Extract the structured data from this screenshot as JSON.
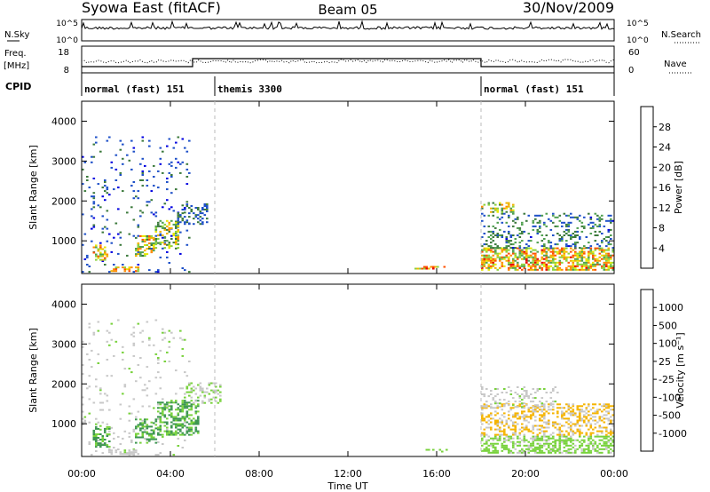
{
  "header": {
    "station": "Syowa East (fitACF)",
    "beam": "Beam 05",
    "date": "30/Nov/2009"
  },
  "summary_panels": {
    "nsky": {
      "label": "N.Sky",
      "tick_top": "10^5",
      "tick_bottom": "10^0"
    },
    "nsearch": {
      "label": "N.Search",
      "tick_top": "10^5",
      "tick_bottom": "10^0"
    },
    "freq": {
      "label_line1": "Freq.",
      "label_line2": "[MHz]",
      "tick_top": "18",
      "tick_bottom": "8"
    },
    "nave": {
      "label": "Nave",
      "tick_top": "60",
      "tick_bottom": "0"
    },
    "cpid": {
      "label": "CPID",
      "segments": [
        {
          "name": "normal (fast) 151",
          "start_hour": 0,
          "end_hour": 6
        },
        {
          "name": "themis 3300",
          "start_hour": 6,
          "end_hour": 18
        },
        {
          "name": "normal (fast) 151",
          "start_hour": 18,
          "end_hour": 24
        }
      ]
    }
  },
  "xaxis": {
    "label": "Time UT",
    "ticks": [
      "00:00",
      "04:00",
      "08:00",
      "12:00",
      "16:00",
      "20:00",
      "00:00"
    ]
  },
  "colors": {
    "power_scale": [
      "#0000e0",
      "#1e50c8",
      "#3c7a3c",
      "#50a050",
      "#8cd23c",
      "#e6e600",
      "#f0b400",
      "#ff8c00",
      "#ff5000",
      "#e60000"
    ],
    "velocity_scale": [
      "#e60000",
      "#ff7800",
      "#f5b400",
      "#c8c8c8",
      "#78d23c",
      "#3c9650",
      "#2850c8",
      "#0a28c8"
    ]
  },
  "chart_data": [
    {
      "type": "heatmap",
      "name": "power",
      "ylabel": "Slant Range [km]",
      "xlim": [
        0,
        24
      ],
      "ylim": [
        180,
        4500
      ],
      "yticks": [
        "1000",
        "2000",
        "3000",
        "4000"
      ],
      "colorbar": {
        "label": "Power [dB]",
        "range": [
          0,
          32
        ],
        "ticks": [
          "4",
          "8",
          "12",
          "16",
          "20",
          "24",
          "28"
        ]
      },
      "regions": [
        {
          "t": [
            0.0,
            4.8
          ],
          "r": [
            200,
            3600
          ],
          "level": [
            2,
            8
          ],
          "density": 0.06
        },
        {
          "t": [
            0.5,
            1.2
          ],
          "r": [
            500,
            900
          ],
          "level": [
            10,
            28
          ],
          "density": 0.5
        },
        {
          "t": [
            1.3,
            2.6
          ],
          "r": [
            220,
            330
          ],
          "level": [
            14,
            28
          ],
          "density": 0.6
        },
        {
          "t": [
            2.4,
            3.3
          ],
          "r": [
            600,
            1100
          ],
          "level": [
            6,
            26
          ],
          "density": 0.5
        },
        {
          "t": [
            3.3,
            4.3
          ],
          "r": [
            800,
            1500
          ],
          "level": [
            6,
            24
          ],
          "density": 0.45
        },
        {
          "t": [
            4.3,
            5.6
          ],
          "r": [
            1400,
            1900
          ],
          "level": [
            3,
            9
          ],
          "density": 0.3
        },
        {
          "t": [
            15.0,
            16.5
          ],
          "r": [
            280,
            360
          ],
          "level": [
            14,
            30
          ],
          "density": 0.5
        },
        {
          "t": [
            18.0,
            24.0
          ],
          "r": [
            250,
            800
          ],
          "level": [
            10,
            30
          ],
          "density": 0.6
        },
        {
          "t": [
            18.0,
            24.0
          ],
          "r": [
            800,
            1700
          ],
          "level": [
            3,
            12
          ],
          "density": 0.25
        },
        {
          "t": [
            18.0,
            19.5
          ],
          "r": [
            1700,
            1950
          ],
          "level": [
            8,
            24
          ],
          "density": 0.35
        }
      ]
    },
    {
      "type": "heatmap",
      "name": "velocity",
      "ylabel": "Slant Range [km]",
      "xlim": [
        0,
        24
      ],
      "ylim": [
        180,
        4500
      ],
      "yticks": [
        "1000",
        "2000",
        "3000",
        "4000"
      ],
      "colorbar": {
        "label": "Velocity [m s⁻¹]",
        "range": [
          -1000,
          1000
        ],
        "ticks": [
          "1000",
          "500",
          "100",
          "25",
          "-25",
          "-100",
          "-500",
          "-1000"
        ]
      },
      "regions": [
        {
          "t": [
            0.0,
            4.8
          ],
          "r": [
            200,
            3600
          ],
          "level": [
            -25,
            100
          ],
          "density": 0.05
        },
        {
          "t": [
            0.5,
            1.3
          ],
          "r": [
            400,
            900
          ],
          "level": [
            -500,
            -100
          ],
          "density": 0.5
        },
        {
          "t": [
            1.2,
            2.6
          ],
          "r": [
            220,
            330
          ],
          "level": [
            -25,
            100
          ],
          "density": 0.55
        },
        {
          "t": [
            2.4,
            3.4
          ],
          "r": [
            500,
            1100
          ],
          "level": [
            -500,
            -100
          ],
          "density": 0.5
        },
        {
          "t": [
            3.4,
            5.2
          ],
          "r": [
            700,
            1600
          ],
          "level": [
            -500,
            -100
          ],
          "density": 0.5
        },
        {
          "t": [
            4.6,
            6.2
          ],
          "r": [
            1500,
            2000
          ],
          "level": [
            -25,
            25
          ],
          "density": 0.3
        },
        {
          "t": [
            15.5,
            16.5
          ],
          "r": [
            280,
            360
          ],
          "level": [
            -100,
            -25
          ],
          "density": 0.4
        },
        {
          "t": [
            18.0,
            24.0
          ],
          "r": [
            250,
            700
          ],
          "level": [
            -100,
            25
          ],
          "density": 0.55
        },
        {
          "t": [
            18.0,
            24.0
          ],
          "r": [
            700,
            1500
          ],
          "level": [
            100,
            500
          ],
          "density": 0.4
        },
        {
          "t": [
            18.0,
            21.5
          ],
          "r": [
            1400,
            1900
          ],
          "level": [
            -25,
            100
          ],
          "density": 0.2
        }
      ]
    }
  ]
}
